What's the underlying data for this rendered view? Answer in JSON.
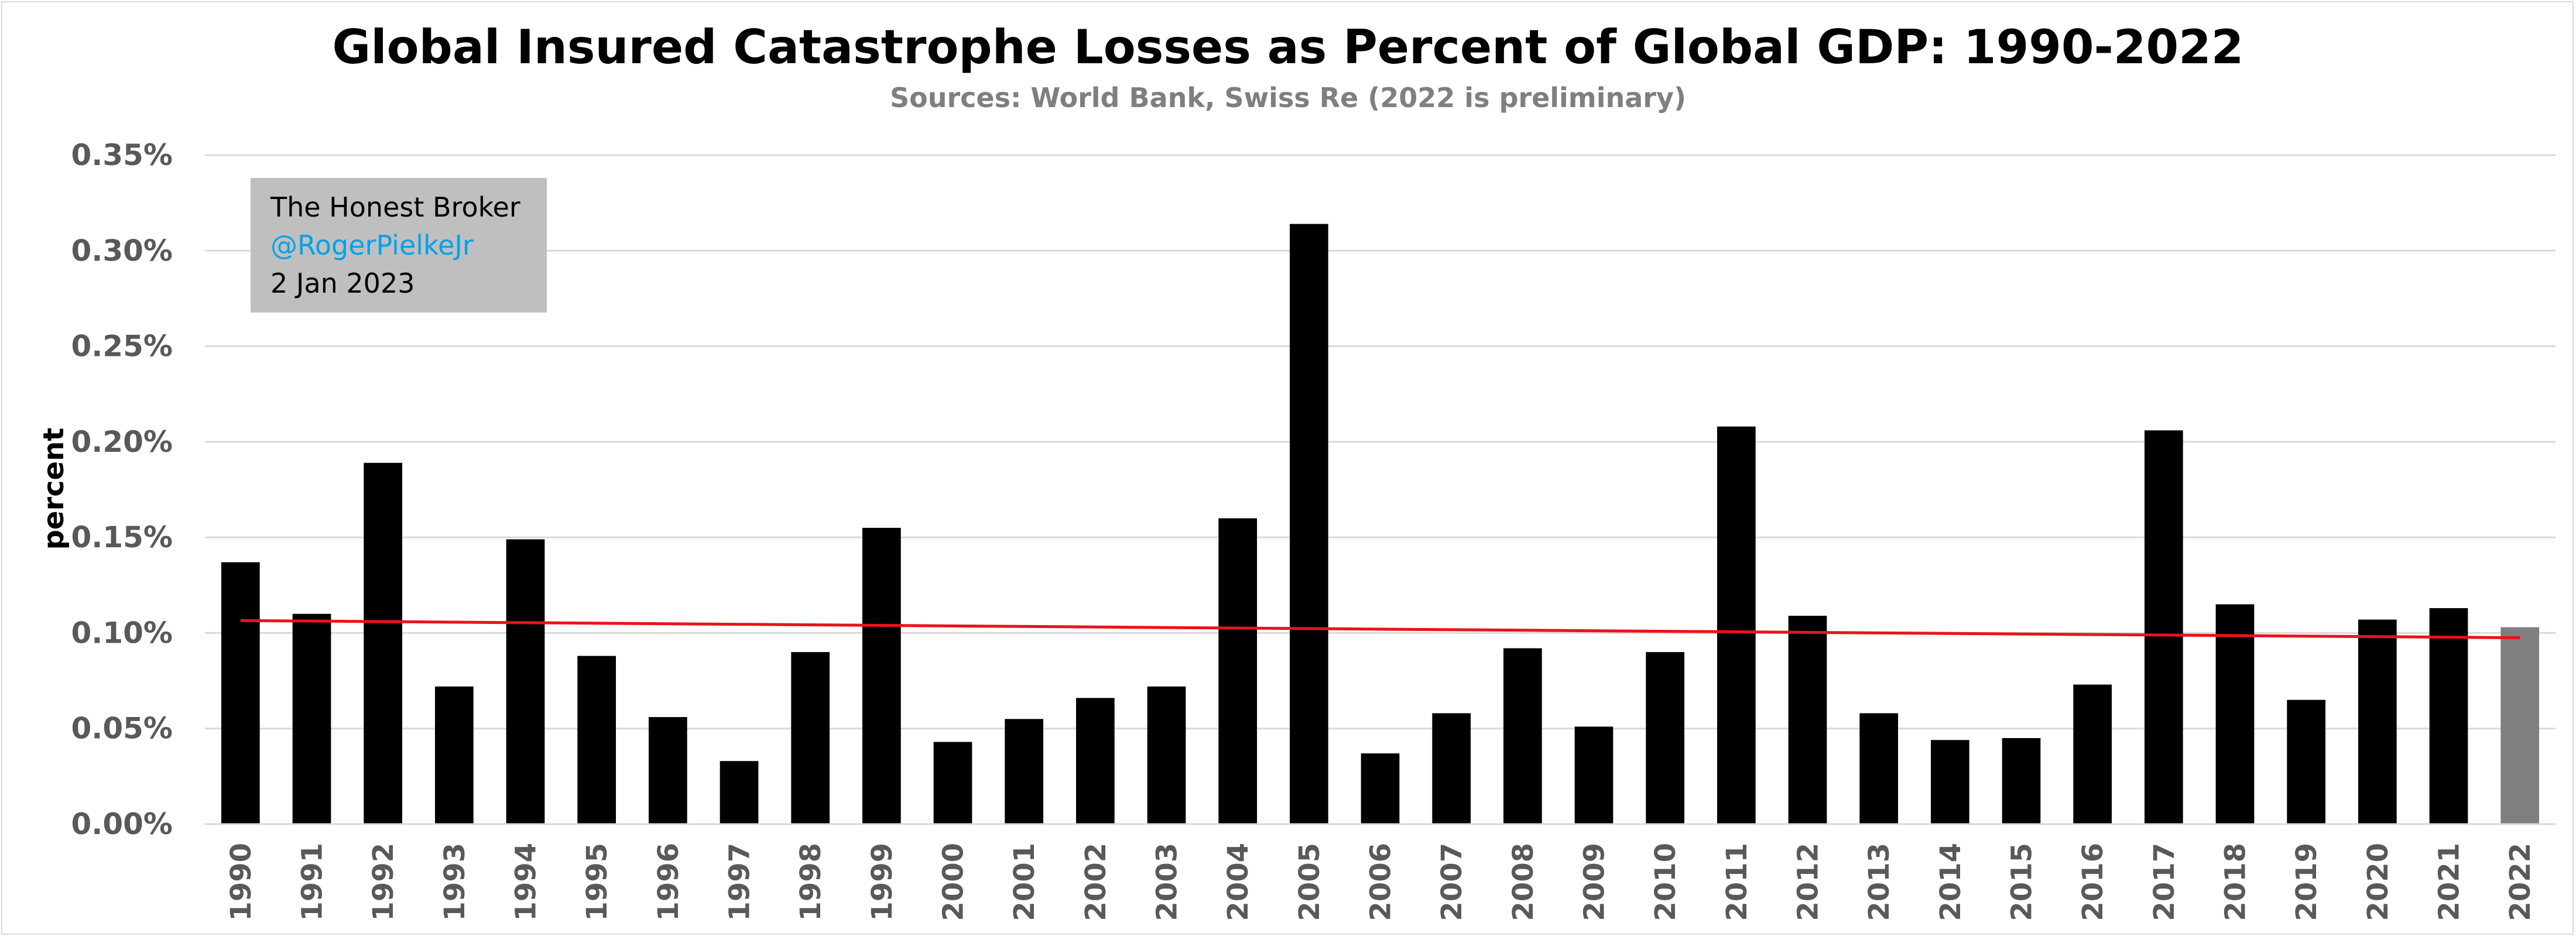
{
  "chart_data": {
    "type": "bar",
    "title": "Global Insured Catastrophe Losses as Percent of Global GDP: 1990-2022",
    "subtitle": "Sources: World Bank, Swiss Re (2022 is preliminary)",
    "xlabel": "",
    "ylabel": "percent",
    "ylim": [
      0,
      0.35
    ],
    "ytick_step": 0.05,
    "ytick_labels": [
      "0.00%",
      "0.05%",
      "0.10%",
      "0.15%",
      "0.20%",
      "0.25%",
      "0.30%",
      "0.35%"
    ],
    "grid": true,
    "categories": [
      "1990",
      "1991",
      "1992",
      "1993",
      "1994",
      "1995",
      "1996",
      "1997",
      "1998",
      "1999",
      "2000",
      "2001",
      "2002",
      "2003",
      "2004",
      "2005",
      "2006",
      "2007",
      "2008",
      "2009",
      "2010",
      "2011",
      "2012",
      "2013",
      "2014",
      "2015",
      "2016",
      "2017",
      "2018",
      "2019",
      "2020",
      "2021",
      "2022"
    ],
    "values": [
      0.137,
      0.11,
      0.189,
      0.072,
      0.149,
      0.088,
      0.056,
      0.033,
      0.09,
      0.155,
      0.043,
      0.055,
      0.066,
      0.072,
      0.16,
      0.314,
      0.037,
      0.058,
      0.092,
      0.051,
      0.09,
      0.208,
      0.109,
      0.058,
      0.044,
      0.045,
      0.073,
      0.206,
      0.115,
      0.065,
      0.107,
      0.113,
      0.103
    ],
    "preliminary_category": "2022",
    "trendline": {
      "start": 0.1065,
      "end": 0.0975
    },
    "colors": {
      "bar": "#000000",
      "preliminary_bar": "#7f7f7f",
      "trendline": "#e8141b",
      "grid": "#d9d9d9",
      "axis_text": "#595959",
      "subtitle": "#7f7f7f",
      "handle": "#00a2e8",
      "annotation_bg": "#bfbfbf"
    },
    "annotation": {
      "line1": "The Honest Broker",
      "line2": "@RogerPielkeJr",
      "line3": "2 Jan 2023"
    }
  }
}
